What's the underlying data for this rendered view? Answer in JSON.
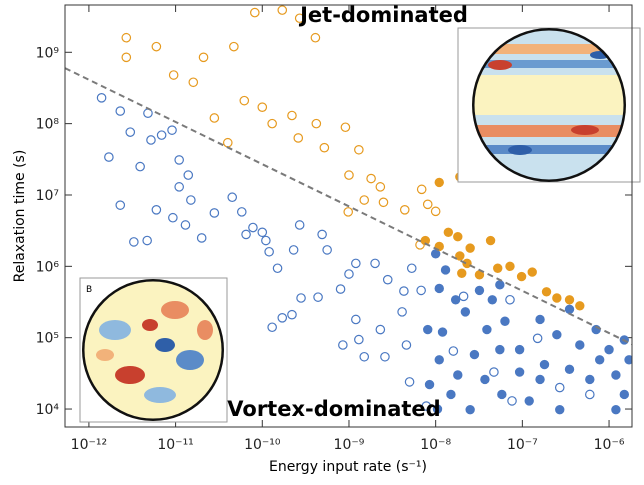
{
  "chart_data": {
    "type": "scatter",
    "x_label": "Energy input rate (s⁻¹)",
    "y_label": "Relaxation time (s)",
    "x_log": true,
    "y_log": true,
    "xlim": [
      5.3e-13,
      1.84e-06
    ],
    "ylim": [
      5600,
      4600000000.0
    ],
    "xticks": [
      {
        "value": 1e-12,
        "label": "10⁻¹²"
      },
      {
        "value": 1e-11,
        "label": "10⁻¹¹"
      },
      {
        "value": 1e-10,
        "label": "10⁻¹⁰"
      },
      {
        "value": 1e-09,
        "label": "10⁻⁹"
      },
      {
        "value": 1e-08,
        "label": "10⁻⁸"
      },
      {
        "value": 1e-07,
        "label": "10⁻⁷"
      },
      {
        "value": 1e-06,
        "label": "10⁻⁶"
      }
    ],
    "yticks": [
      {
        "value": 10000,
        "label": "10⁴"
      },
      {
        "value": 100000,
        "label": "10⁵"
      },
      {
        "value": 1000000,
        "label": "10⁶"
      },
      {
        "value": 10000000,
        "label": "10⁷"
      },
      {
        "value": 100000000,
        "label": "10⁸"
      },
      {
        "value": 1000000000,
        "label": "10⁹"
      }
    ],
    "annotations": [
      "Jet-dominated",
      "Vortex-dominated"
    ],
    "inset_label": "B",
    "trend_line": {
      "color": "#7a7a7a",
      "x": [
        5.3e-13,
        1.84e-06
      ],
      "y": [
        600000000.0,
        81000.0
      ]
    },
    "series": [
      {
        "color": "#4a78c2",
        "marker": "open",
        "x": [
          1.4e-12,
          1.7e-12,
          2.3e-12,
          4.8e-12,
          3e-12,
          2.3e-12,
          3.9e-12,
          3.3e-12,
          5.2e-12,
          6.9e-12,
          9.1e-12,
          1.1e-11,
          1.4e-11,
          1.1e-11,
          1.5e-11,
          6e-12,
          4.7e-12,
          9.3e-12,
          1.3e-11,
          2.8e-11,
          2e-11,
          4.5e-11,
          5.8e-11,
          6.5e-11,
          1e-10,
          1.1e-10,
          1.2e-10,
          7.8e-11,
          1.5e-10,
          2.7e-10,
          2.3e-10,
          4.9e-10,
          5.6e-10,
          1e-09,
          1.2e-09,
          2e-09,
          2.8e-09,
          2.8e-10,
          4.4e-10,
          1.7e-10,
          1.3e-10,
          2.2e-10,
          8e-10,
          1.2e-09,
          8.5e-10,
          1.3e-09,
          1.5e-09,
          2.3e-09,
          4.3e-09,
          5.3e-09,
          4.1e-09,
          6.8e-09,
          4.6e-09,
          5e-09,
          7.8e-09,
          2.6e-09,
          2.1e-08,
          7.2e-08,
          1.5e-07,
          2.7e-07,
          7.6e-08,
          6e-07,
          1.6e-08,
          4.7e-08
        ],
        "values": [
          230000000.0,
          34000000.0,
          150000000.0,
          140000000.0,
          76000000.0,
          7200000.0,
          25000000.0,
          2200000.0,
          59000000.0,
          69000000.0,
          81000000.0,
          31000000.0,
          19000000.0,
          13000000.0,
          8500000.0,
          6200000.0,
          2300000.0,
          4800000.0,
          3800000.0,
          5600000.0,
          2500000.0,
          9300000.0,
          5800000.0,
          2800000.0,
          3000000.0,
          2300000.0,
          1600000.0,
          3500000.0,
          940000.0,
          3800000.0,
          1700000.0,
          2800000.0,
          1700000.0,
          780000.0,
          1100000.0,
          1100000.0,
          650000.0,
          360000.0,
          370000.0,
          190000.0,
          140000.0,
          210000.0,
          480000.0,
          180000.0,
          79000.0,
          94000.0,
          54000.0,
          130000.0,
          450000.0,
          940000.0,
          230000.0,
          460000.0,
          79000.0,
          24000.0,
          11000.0,
          54000.0,
          380000.0,
          340000.0,
          98000.0,
          20000.0,
          13000.0,
          16000.0,
          65000.0,
          33000.0
        ]
      },
      {
        "color": "#4a78c2",
        "marker": "filled",
        "x": [
          1e-08,
          1.3e-08,
          1.1e-08,
          1.7e-08,
          8.1e-09,
          1.2e-08,
          2.2e-08,
          3.2e-08,
          4.5e-08,
          5.5e-08,
          3.9e-08,
          6.3e-08,
          9.3e-08,
          1.6e-07,
          2.5e-07,
          3.5e-07,
          4.6e-07,
          7.1e-07,
          1e-06,
          1.5e-06,
          1.1e-08,
          1.8e-08,
          2.8e-08,
          5.5e-08,
          9.3e-08,
          1.6e-07,
          3.5e-07,
          7.8e-07,
          1.7e-06,
          8.5e-09,
          1.5e-08,
          2.5e-08,
          3.7e-08,
          1.2e-07,
          2.7e-07,
          6e-07,
          1.2e-06,
          1.5e-06,
          1.05e-08,
          5.8e-08,
          1.8e-07,
          1.2e-06
        ],
        "values": [
          1500000.0,
          890000.0,
          490000.0,
          340000.0,
          130000.0,
          120000.0,
          230000.0,
          460000.0,
          340000.0,
          550000.0,
          130000.0,
          170000.0,
          68000.0,
          180000.0,
          110000.0,
          250000.0,
          79000.0,
          130000.0,
          68000.0,
          93000.0,
          49000.0,
          30000.0,
          58000.0,
          68000.0,
          33000.0,
          26000.0,
          36000.0,
          49000.0,
          49000.0,
          22000.0,
          16000.0,
          9800,
          26000.0,
          13000.0,
          9800,
          26000.0,
          9800,
          16000.0,
          10000.0,
          16000.0,
          42000.0,
          30000.0
        ]
      },
      {
        "color": "#e69a1f",
        "marker": "open",
        "x": [
          2.7e-12,
          6e-12,
          2.7e-12,
          9.5e-12,
          2.1e-11,
          4.7e-11,
          8.2e-11,
          1.7e-10,
          2.7e-10,
          4.1e-10,
          6.2e-11,
          1e-10,
          1.3e-10,
          2.2e-10,
          2.6e-10,
          4.2e-10,
          5.2e-10,
          9.1e-10,
          1e-09,
          1.3e-09,
          1.8e-09,
          2.3e-09,
          9.8e-10,
          1.5e-09,
          2.5e-09,
          4.4e-09,
          6.9e-09,
          8.1e-09,
          1e-08,
          4e-11,
          2.8e-11,
          1.6e-11,
          6.6e-09
        ],
        "values": [
          850000000.0,
          1200000000.0,
          1600000000.0,
          480000000.0,
          850000000.0,
          1200000000.0,
          3600000000.0,
          3900000000.0,
          3000000000.0,
          1600000000.0,
          210000000.0,
          170000000.0,
          100000000.0,
          130000000.0,
          63000000.0,
          100000000.0,
          46000000.0,
          89000000.0,
          19000000.0,
          43000000.0,
          17000000.0,
          13000000.0,
          5800000.0,
          8500000.0,
          7900000.0,
          6200000.0,
          12000000.0,
          7400000.0,
          5900000.0,
          54000000.0,
          120000000.0,
          380000000.0,
          2000000.0
        ]
      },
      {
        "color": "#e69a1f",
        "marker": "filled",
        "x": [
          1.1e-08,
          1.9e-08,
          7.6e-09,
          1.1e-08,
          1.4e-08,
          1.8e-08,
          2.5e-08,
          1.9e-08,
          4.3e-08,
          2.3e-08,
          3.2e-08,
          5.2e-08,
          7.2e-08,
          9.8e-08,
          1.3e-07,
          1.9e-07,
          2.5e-07,
          3.5e-07,
          4.6e-07,
          2e-08
        ],
        "values": [
          15000000.0,
          18000000.0,
          2300000.0,
          1900000.0,
          3000000.0,
          2600000.0,
          1800000.0,
          1400000.0,
          2300000.0,
          1100000.0,
          760000.0,
          940000.0,
          1000000.0,
          720000.0,
          830000.0,
          440000.0,
          360000.0,
          340000.0,
          280000.0,
          800000.0
        ]
      }
    ]
  }
}
